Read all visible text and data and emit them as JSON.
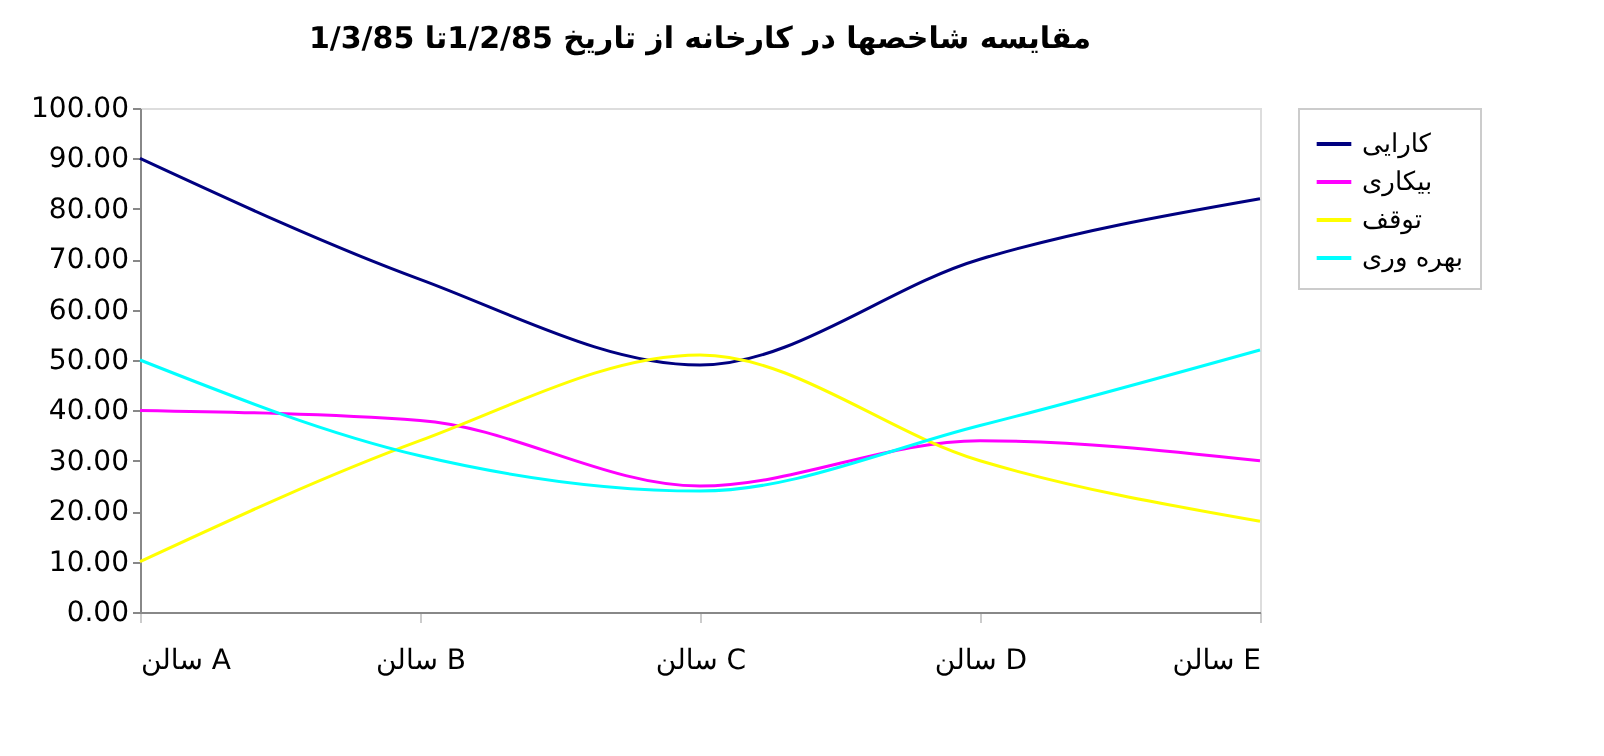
{
  "chart_data": {
    "type": "line",
    "title": "مقایسه شاخصها در کارخانه از تاریخ 1/2/85تا 1/3/85",
    "categories": [
      "سالن A",
      "سالن B",
      "سالن C",
      "سالن D",
      "سالن E"
    ],
    "series": [
      {
        "name": "کارایی",
        "color": "#000080",
        "values": [
          90,
          66,
          49,
          70,
          82
        ]
      },
      {
        "name": "بیکاری",
        "color": "#ff00ff",
        "values": [
          40,
          38,
          25,
          34,
          30
        ]
      },
      {
        "name": "توقف",
        "color": "#ffff00",
        "values": [
          10,
          34,
          51,
          30,
          18
        ]
      },
      {
        "name": "بهره وری",
        "color": "#00ffff",
        "values": [
          50,
          31,
          24,
          37,
          52
        ]
      }
    ],
    "ylim": [
      0,
      100
    ],
    "yticks": [
      {
        "value": 0,
        "label": "0.00"
      },
      {
        "value": 10,
        "label": "10.00"
      },
      {
        "value": 20,
        "label": "20.00"
      },
      {
        "value": 30,
        "label": "30.00"
      },
      {
        "value": 40,
        "label": "40.00"
      },
      {
        "value": 50,
        "label": "50.00"
      },
      {
        "value": 60,
        "label": "60.00"
      },
      {
        "value": 70,
        "label": "70.00"
      },
      {
        "value": 80,
        "label": "80.00"
      },
      {
        "value": 90,
        "label": "90.00"
      },
      {
        "value": 100,
        "label": "100.00"
      }
    ],
    "grid": false,
    "legend": "right",
    "marker": "none",
    "line_style": "solid"
  }
}
